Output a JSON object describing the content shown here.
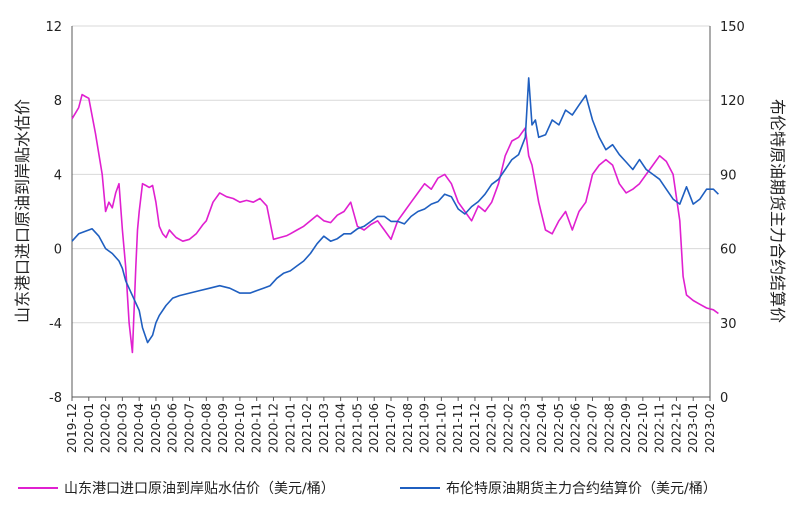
{
  "chart_data": {
    "type": "line",
    "y_left": {
      "label": "山东港口进口原油到岸贴水估价",
      "ylim": [
        -8,
        12
      ],
      "ticks": [
        -8,
        -4,
        0,
        4,
        8,
        12
      ]
    },
    "y_right": {
      "label": "布伦特原油期货主力合约结算价",
      "ylim": [
        0,
        150
      ],
      "ticks": [
        0,
        30,
        60,
        90,
        120,
        150
      ]
    },
    "x_categories": [
      "2019-12",
      "2020-01",
      "2020-02",
      "2020-03",
      "2020-04",
      "2020-05",
      "2020-06",
      "2020-07",
      "2020-08",
      "2020-09",
      "2020-10",
      "2020-11",
      "2020-12",
      "2021-01",
      "2021-02",
      "2021-03",
      "2021-04",
      "2021-05",
      "2021-06",
      "2021-07",
      "2021-08",
      "2021-09",
      "2021-10",
      "2021-11",
      "2021-12",
      "2022-01",
      "2022-02",
      "2022-03",
      "2022-04",
      "2022-05",
      "2022-06",
      "2022-07",
      "2022-08",
      "2022-09",
      "2022-10",
      "2022-11",
      "2022-12",
      "2023-01",
      "2023-02"
    ],
    "grid": true,
    "legend_position": "bottom",
    "series": [
      {
        "name": "山东港口进口原油到岸贴水估价（美元/桶）",
        "axis": "left",
        "color": "#e020d0",
        "x": [
          0,
          0.2,
          0.4,
          0.6,
          0.8,
          1.0,
          1.4,
          1.8,
          2.0,
          2.2,
          2.4,
          2.6,
          2.8,
          3.0,
          3.2,
          3.4,
          3.6,
          3.8,
          3.9,
          4.0,
          4.2,
          4.4,
          4.6,
          4.8,
          5.0,
          5.2,
          5.4,
          5.6,
          5.8,
          6.0,
          6.2,
          6.6,
          7.0,
          7.4,
          7.8,
          8.0,
          8.4,
          8.8,
          9.2,
          9.6,
          10.0,
          10.4,
          10.8,
          11.2,
          11.6,
          12.0,
          12.4,
          12.8,
          13.0,
          13.4,
          13.8,
          14.2,
          14.6,
          15.0,
          15.4,
          15.8,
          16.2,
          16.6,
          17.0,
          17.4,
          17.8,
          18.2,
          18.6,
          19.0,
          19.4,
          19.8,
          20.2,
          20.6,
          21.0,
          21.4,
          21.8,
          22.2,
          22.6,
          23.0,
          23.4,
          23.8,
          24.2,
          24.6,
          25.0,
          25.4,
          25.8,
          26.2,
          26.6,
          27.0,
          27.2,
          27.4,
          27.8,
          28.2,
          28.6,
          29.0,
          29.4,
          29.8,
          30.2,
          30.6,
          31.0,
          31.4,
          31.8,
          32.2,
          32.6,
          33.0,
          33.4,
          33.8,
          34.2,
          34.6,
          35.0,
          35.4,
          35.8,
          36.2,
          36.4,
          36.6,
          37.0,
          37.4,
          37.8,
          38.2,
          38.5
        ],
        "values": [
          7.0,
          7.3,
          7.6,
          8.3,
          8.2,
          8.1,
          6.2,
          4.0,
          2.0,
          2.5,
          2.2,
          3.0,
          3.5,
          1.0,
          -1.0,
          -4.0,
          -5.6,
          -1.0,
          1.0,
          2.0,
          3.5,
          3.4,
          3.3,
          3.4,
          2.5,
          1.2,
          0.8,
          0.6,
          1.0,
          0.8,
          0.6,
          0.4,
          0.5,
          0.8,
          1.3,
          1.5,
          2.5,
          3.0,
          2.8,
          2.7,
          2.5,
          2.6,
          2.5,
          2.7,
          2.3,
          0.5,
          0.6,
          0.7,
          0.8,
          1.0,
          1.2,
          1.5,
          1.8,
          1.5,
          1.4,
          1.8,
          2.0,
          2.5,
          1.2,
          1.0,
          1.3,
          1.5,
          1.0,
          0.5,
          1.5,
          2.0,
          2.5,
          3.0,
          3.5,
          3.2,
          3.8,
          4.0,
          3.5,
          2.5,
          2.0,
          1.5,
          2.3,
          2.0,
          2.5,
          3.5,
          5.0,
          5.8,
          6.0,
          6.5,
          5.0,
          4.5,
          2.5,
          1.0,
          0.8,
          1.5,
          2.0,
          1.0,
          2.0,
          2.5,
          4.0,
          4.5,
          4.8,
          4.5,
          3.5,
          3.0,
          3.2,
          3.5,
          4.0,
          4.5,
          5.0,
          4.7,
          4.0,
          1.5,
          -1.5,
          -2.5,
          -2.8,
          -3.0,
          -3.2,
          -3.3,
          -3.5
        ]
      },
      {
        "name": "布伦特原油期货主力合约结算价（美元/桶）",
        "axis": "right",
        "color": "#1f5fc0",
        "x": [
          0,
          0.4,
          0.8,
          1.2,
          1.6,
          2.0,
          2.4,
          2.8,
          3.0,
          3.2,
          3.6,
          4.0,
          4.2,
          4.5,
          4.8,
          5.0,
          5.2,
          5.6,
          6.0,
          6.4,
          7.0,
          7.6,
          8.2,
          8.8,
          9.4,
          10.0,
          10.6,
          11.0,
          11.4,
          11.8,
          12.2,
          12.6,
          13.0,
          13.4,
          13.8,
          14.2,
          14.6,
          15.0,
          15.4,
          15.8,
          16.2,
          16.6,
          17.0,
          17.4,
          17.8,
          18.2,
          18.6,
          19.0,
          19.4,
          19.8,
          20.2,
          20.6,
          21.0,
          21.4,
          21.8,
          22.2,
          22.6,
          23.0,
          23.4,
          23.8,
          24.2,
          24.6,
          25.0,
          25.4,
          25.8,
          26.2,
          26.6,
          27.0,
          27.2,
          27.4,
          27.6,
          27.8,
          28.2,
          28.6,
          29.0,
          29.4,
          29.8,
          30.2,
          30.6,
          31.0,
          31.4,
          31.8,
          32.2,
          32.6,
          33.0,
          33.4,
          33.8,
          34.2,
          34.6,
          35.0,
          35.4,
          35.8,
          36.2,
          36.6,
          37.0,
          37.4,
          37.8,
          38.2,
          38.5
        ],
        "values": [
          63,
          66,
          67,
          68,
          65,
          60,
          58,
          55,
          52,
          47,
          41,
          35,
          28,
          22,
          25,
          30,
          33,
          37,
          40,
          41,
          42,
          43,
          44,
          45,
          44,
          42,
          42,
          43,
          44,
          45,
          48,
          50,
          51,
          53,
          55,
          58,
          62,
          65,
          63,
          64,
          66,
          66,
          68,
          69,
          71,
          73,
          73,
          71,
          71,
          70,
          73,
          75,
          76,
          78,
          79,
          82,
          81,
          76,
          74,
          77,
          79,
          82,
          86,
          88,
          92,
          96,
          98,
          105,
          129,
          110,
          112,
          105,
          106,
          112,
          110,
          116,
          114,
          118,
          122,
          112,
          105,
          100,
          102,
          98,
          95,
          92,
          96,
          92,
          90,
          88,
          84,
          80,
          78,
          85,
          78,
          80,
          84,
          84,
          82
        ]
      }
    ]
  }
}
